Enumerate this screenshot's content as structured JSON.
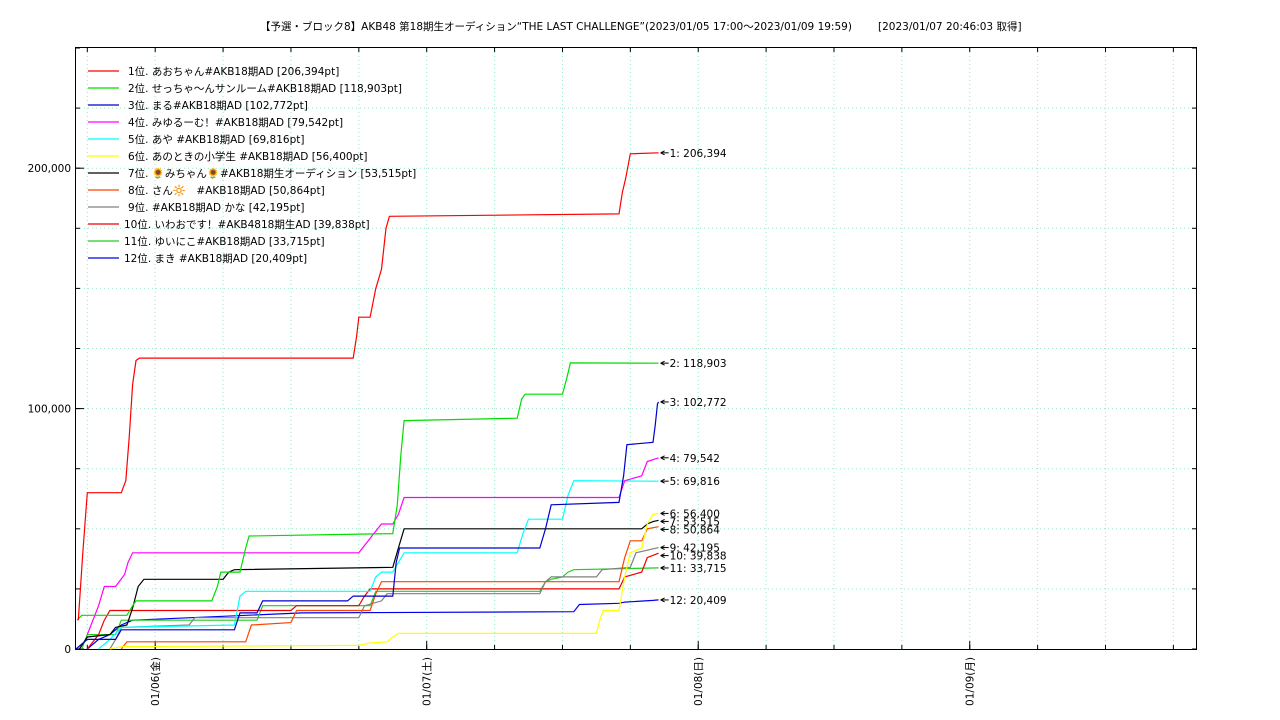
{
  "chart_data": {
    "type": "line",
    "title": "【予選・ブロック8】AKB48 第18期生オーディション“THE LAST CHALLENGE”(2023/01/05 17:00〜2023/01/09 19:59)",
    "retrieved": "[2023/01/07 20:46:03 取得]",
    "xlabel": "",
    "ylabel": "",
    "x_unit": "hours since 2023/01/05 17:00",
    "xlim": [
      0,
      99
    ],
    "ylim": [
      0,
      250000
    ],
    "y_ticks": [
      {
        "value": 0,
        "label": "0"
      },
      {
        "value": 100000,
        "label": "100,000"
      },
      {
        "value": 200000,
        "label": "200,000"
      }
    ],
    "x_ticks": [
      {
        "value": 7,
        "label": "01/06(金)"
      },
      {
        "value": 31,
        "label": "01/07(土)"
      },
      {
        "value": 55,
        "label": "01/08(日)"
      },
      {
        "value": 79,
        "label": "01/09(月)"
      }
    ],
    "grid": true,
    "legend_position": "top-left",
    "series": [
      {
        "name": "1位. あおちゃん#AKB18期AD [206,394pt]",
        "end_label": "1: 206,394",
        "color": "#ff0000",
        "points": [
          [
            0.2,
            12000
          ],
          [
            0.6,
            40000
          ],
          [
            1,
            65000
          ],
          [
            4,
            65000
          ],
          [
            4.4,
            70000
          ],
          [
            4.7,
            88000
          ],
          [
            5,
            110000
          ],
          [
            5.3,
            120000
          ],
          [
            5.6,
            121000
          ],
          [
            24.5,
            121000
          ],
          [
            24.8,
            130000
          ],
          [
            25,
            138000
          ],
          [
            26,
            138000
          ],
          [
            26.5,
            150000
          ],
          [
            27,
            158000
          ],
          [
            27.4,
            175000
          ],
          [
            27.7,
            180000
          ],
          [
            48,
            181000
          ],
          [
            48.3,
            190000
          ],
          [
            48.6,
            196000
          ],
          [
            49,
            206000
          ],
          [
            51.5,
            206394
          ]
        ]
      },
      {
        "name": "2位. せっちゃ〜んサンルーム#AKB18期AD [118,903pt]",
        "end_label": "2: 118,903",
        "color": "#00dd00",
        "points": [
          [
            0.1,
            12000
          ],
          [
            0.5,
            14000
          ],
          [
            4.5,
            14000
          ],
          [
            5,
            18000
          ],
          [
            5.3,
            20000
          ],
          [
            12,
            20000
          ],
          [
            12.5,
            26000
          ],
          [
            12.8,
            32000
          ],
          [
            14.5,
            32000
          ],
          [
            15,
            42000
          ],
          [
            15.3,
            47000
          ],
          [
            28,
            48000
          ],
          [
            28.4,
            60000
          ],
          [
            28.7,
            80000
          ],
          [
            29,
            95000
          ],
          [
            39,
            96000
          ],
          [
            39.4,
            104000
          ],
          [
            39.7,
            106000
          ],
          [
            43,
            106000
          ],
          [
            43.4,
            113000
          ],
          [
            43.7,
            119000
          ],
          [
            51.5,
            118903
          ]
        ]
      },
      {
        "name": "3位. まる#AKB18期AD [102,772pt]",
        "end_label": "3: 102,772",
        "color": "#0000cc",
        "points": [
          [
            0,
            0
          ],
          [
            1,
            4000
          ],
          [
            3.5,
            4000
          ],
          [
            4,
            8000
          ],
          [
            14,
            8000
          ],
          [
            14.5,
            15000
          ],
          [
            16,
            15000
          ],
          [
            16.5,
            20000
          ],
          [
            24,
            20000
          ],
          [
            24.5,
            22000
          ],
          [
            28,
            22000
          ],
          [
            28.3,
            36000
          ],
          [
            28.6,
            42000
          ],
          [
            41,
            42000
          ],
          [
            41.5,
            50000
          ],
          [
            42,
            60000
          ],
          [
            48,
            61000
          ],
          [
            48.4,
            72000
          ],
          [
            48.7,
            85000
          ],
          [
            51,
            86000
          ],
          [
            51.2,
            93000
          ],
          [
            51.4,
            102000
          ],
          [
            51.5,
            102772
          ]
        ]
      },
      {
        "name": "4位. みゆるーむ！#AKB18期AD [79,542pt]",
        "end_label": "4: 79,542",
        "color": "#ff00ff",
        "points": [
          [
            1,
            6000
          ],
          [
            2,
            18000
          ],
          [
            2.5,
            26000
          ],
          [
            3.5,
            26000
          ],
          [
            4.3,
            31000
          ],
          [
            4.6,
            36000
          ],
          [
            5,
            40000
          ],
          [
            25,
            40000
          ],
          [
            26,
            46000
          ],
          [
            27,
            52000
          ],
          [
            28,
            52000
          ],
          [
            28.5,
            56000
          ],
          [
            29,
            63000
          ],
          [
            48,
            63000
          ],
          [
            48.5,
            70000
          ],
          [
            50,
            72000
          ],
          [
            50.5,
            78000
          ],
          [
            51.5,
            79542
          ]
        ]
      },
      {
        "name": "5位. あや #AKB18期AD [69,816pt]",
        "end_label": "5: 69,816",
        "color": "#00ffff",
        "points": [
          [
            2,
            0
          ],
          [
            3,
            4000
          ],
          [
            4,
            9000
          ],
          [
            14,
            10000
          ],
          [
            14.5,
            22000
          ],
          [
            15,
            24000
          ],
          [
            26,
            24000
          ],
          [
            26.5,
            30000
          ],
          [
            27,
            32000
          ],
          [
            28,
            32000
          ],
          [
            28.5,
            36000
          ],
          [
            29,
            40000
          ],
          [
            39,
            40000
          ],
          [
            39.5,
            48000
          ],
          [
            40,
            54000
          ],
          [
            43,
            54000
          ],
          [
            43.5,
            64000
          ],
          [
            44,
            70000
          ],
          [
            51.5,
            69816
          ]
        ]
      },
      {
        "name": "6位. あのときの小学生 #AKB18期AD [56,400pt]",
        "end_label": "6: 56,400",
        "color": "#ffff00",
        "points": [
          [
            3,
            0
          ],
          [
            4,
            1000
          ],
          [
            25,
            1500
          ],
          [
            26,
            2500
          ],
          [
            27.5,
            3000
          ],
          [
            28,
            5000
          ],
          [
            28.5,
            6500
          ],
          [
            46,
            6500
          ],
          [
            46.3,
            12000
          ],
          [
            46.6,
            16000
          ],
          [
            48,
            16000
          ],
          [
            48.5,
            30000
          ],
          [
            49,
            40000
          ],
          [
            50,
            42000
          ],
          [
            50.5,
            52000
          ],
          [
            51,
            56000
          ],
          [
            51.5,
            56400
          ]
        ]
      },
      {
        "name": "7位. 🌻みちゃん🌻#AKB18期生オーディション [53,515pt]",
        "end_label": "7: 53,515",
        "color": "#000000",
        "points": [
          [
            0.3,
            0
          ],
          [
            1,
            5000
          ],
          [
            3,
            6000
          ],
          [
            3.5,
            9000
          ],
          [
            4.5,
            10000
          ],
          [
            5,
            17000
          ],
          [
            5.5,
            26000
          ],
          [
            6,
            29000
          ],
          [
            13,
            29000
          ],
          [
            13.5,
            32000
          ],
          [
            14,
            33000
          ],
          [
            28,
            34000
          ],
          [
            28.5,
            42000
          ],
          [
            29,
            50000
          ],
          [
            50,
            50000
          ],
          [
            50.5,
            52000
          ],
          [
            51,
            53000
          ],
          [
            51.5,
            53515
          ]
        ]
      },
      {
        "name": "8位. さん🔆　#AKB18期AD [50,864pt]",
        "end_label": "8: 50,864",
        "color": "#ff4400",
        "points": [
          [
            4,
            0
          ],
          [
            4.5,
            3000
          ],
          [
            15,
            3000
          ],
          [
            15.5,
            10000
          ],
          [
            19,
            11000
          ],
          [
            19.5,
            16000
          ],
          [
            26,
            16000
          ],
          [
            26.5,
            23000
          ],
          [
            27,
            28000
          ],
          [
            48,
            28000
          ],
          [
            48.5,
            38000
          ],
          [
            49,
            45000
          ],
          [
            50,
            45000
          ],
          [
            50.5,
            50000
          ],
          [
            51.5,
            50864
          ]
        ]
      },
      {
        "name": "9位. #AKB18期AD かな [42,195pt]",
        "end_label": "9: 42,195",
        "color": "#808080",
        "points": [
          [
            3,
            0
          ],
          [
            3.5,
            4000
          ],
          [
            4,
            9000
          ],
          [
            10,
            10000
          ],
          [
            10.5,
            13000
          ],
          [
            25,
            13000
          ],
          [
            25.5,
            18000
          ],
          [
            27,
            20000
          ],
          [
            27.5,
            23000
          ],
          [
            41,
            23000
          ],
          [
            41.5,
            28000
          ],
          [
            42,
            30000
          ],
          [
            46,
            30000
          ],
          [
            46.5,
            33000
          ],
          [
            49,
            34000
          ],
          [
            49.5,
            40000
          ],
          [
            51.5,
            42195
          ]
        ]
      },
      {
        "name": "10位. いわおです！#AKB4818期生AD [39,838pt]",
        "end_label": "10: 39,838",
        "color": "#ee0000",
        "points": [
          [
            1,
            0
          ],
          [
            2,
            6000
          ],
          [
            2.5,
            12000
          ],
          [
            3,
            16000
          ],
          [
            19,
            16000
          ],
          [
            19.5,
            18000
          ],
          [
            25,
            18000
          ],
          [
            25.5,
            22000
          ],
          [
            26,
            25000
          ],
          [
            48,
            25000
          ],
          [
            48.5,
            30000
          ],
          [
            50,
            32000
          ],
          [
            50.5,
            38000
          ],
          [
            51.5,
            39838
          ]
        ]
      },
      {
        "name": "11位. ゆいにこ#AKB18期AD [33,715pt]",
        "end_label": "11: 33,715",
        "color": "#22cc22",
        "points": [
          [
            0.5,
            0
          ],
          [
            1,
            6000
          ],
          [
            3.5,
            6000
          ],
          [
            4,
            12000
          ],
          [
            16,
            12000
          ],
          [
            16.5,
            18000
          ],
          [
            26,
            18000
          ],
          [
            26.5,
            24000
          ],
          [
            41,
            24000
          ],
          [
            41.5,
            28000
          ],
          [
            42,
            29000
          ],
          [
            43,
            30000
          ],
          [
            43.5,
            32000
          ],
          [
            44,
            33000
          ],
          [
            51.5,
            33715
          ]
        ]
      },
      {
        "name": "12位. まき #AKB18期AD [20,409pt]",
        "end_label": "12: 20,409",
        "color": "#0000ee",
        "points": [
          [
            1,
            0
          ],
          [
            2,
            4000
          ],
          [
            3,
            6000
          ],
          [
            4,
            10000
          ],
          [
            5,
            12000
          ],
          [
            20,
            15000
          ],
          [
            44,
            15500
          ],
          [
            44.5,
            18500
          ],
          [
            48,
            19000
          ],
          [
            48.5,
            19500
          ],
          [
            51,
            20200
          ],
          [
            51.5,
            20409
          ]
        ]
      }
    ]
  }
}
